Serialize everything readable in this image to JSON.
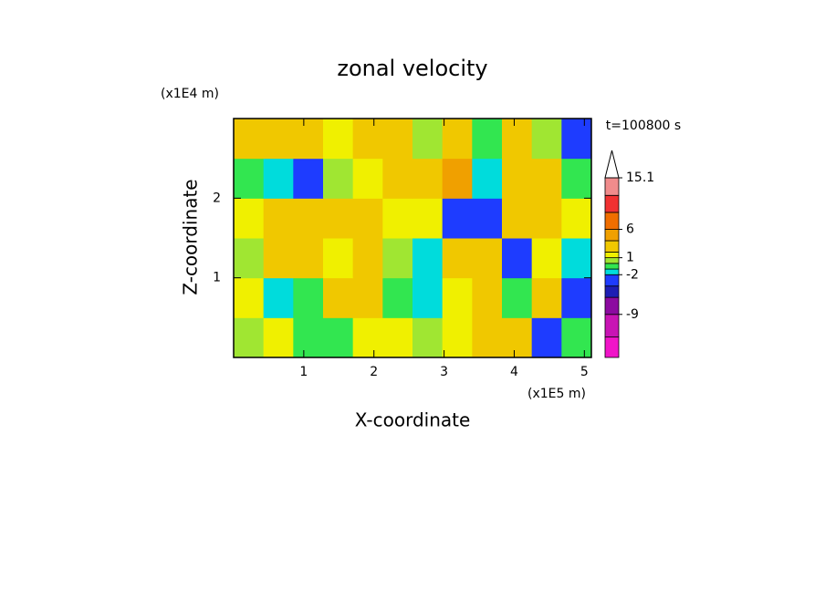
{
  "chart_data": {
    "type": "contour",
    "title": "zonal velocity",
    "x_label": "X-coordinate",
    "y_label": "Z-coordinate",
    "x_unit": "(x1E5 m)",
    "y_unit": "(x1E4 m)",
    "annotation": "t=100800 s",
    "xlim": [
      0,
      5.1
    ],
    "ylim": [
      0,
      3
    ],
    "xticks": [
      1,
      2,
      3,
      4,
      5
    ],
    "yticks": [
      1,
      2
    ],
    "z": [
      [
        0,
        1,
        -1,
        -1,
        1,
        1,
        0,
        1,
        2,
        3,
        -4,
        -1
      ],
      [
        1,
        -2,
        -1,
        2,
        2,
        -1,
        -2,
        1,
        2,
        -1,
        2,
        -3
      ],
      [
        0,
        2,
        3,
        1,
        2,
        0,
        -2,
        2,
        3,
        -3,
        1,
        -2
      ],
      [
        1,
        2,
        2,
        3,
        2,
        1,
        1,
        -3,
        -4,
        2,
        3,
        1
      ],
      [
        -1,
        -2,
        -4,
        0,
        1,
        2,
        3,
        4,
        -2,
        3,
        2,
        -1
      ],
      [
        2,
        3,
        2,
        1,
        3,
        2,
        0,
        2,
        -1,
        2,
        0,
        -4
      ]
    ],
    "levels": [
      -13,
      -9,
      -6,
      -4,
      -2,
      -1,
      0,
      1,
      2,
      4,
      6,
      9,
      12
    ],
    "colors": [
      "#f014c8",
      "#c814b4",
      "#8c0aa0",
      "#1e1eb4",
      "#1e3cff",
      "#00dcdc",
      "#32e650",
      "#a0e632",
      "#f0f000",
      "#f0c800",
      "#f0a000",
      "#f06e00",
      "#f03232",
      "#f08c8c"
    ],
    "clim": [
      -16.6,
      15.1
    ],
    "cticks": [
      15.1,
      6,
      1,
      -2,
      -9
    ]
  }
}
